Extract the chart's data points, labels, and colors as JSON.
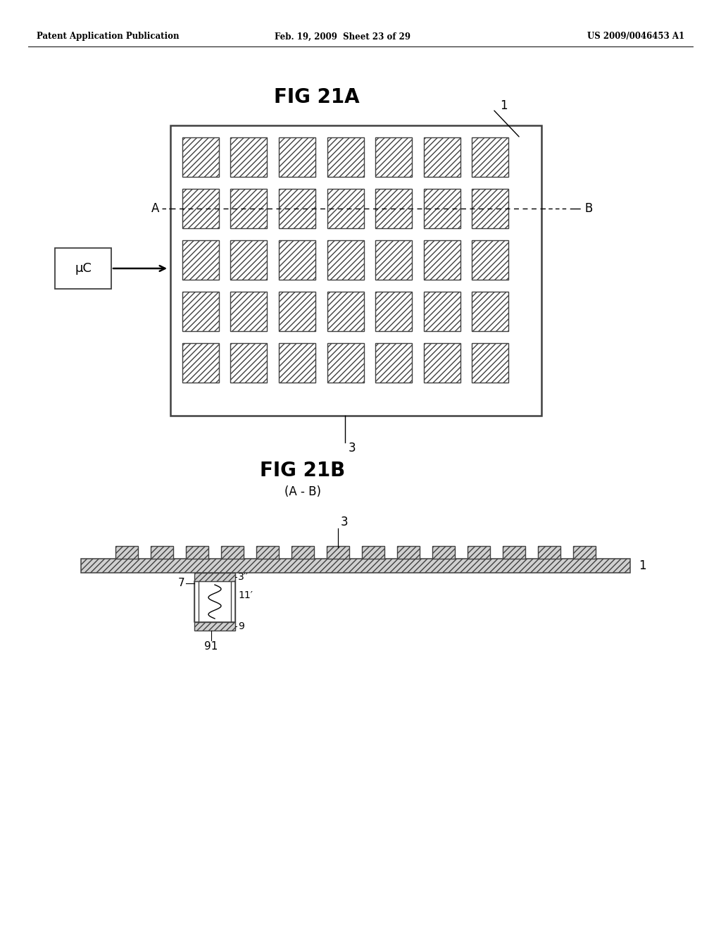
{
  "bg_color": "#ffffff",
  "header_left": "Patent Application Publication",
  "header_mid": "Feb. 19, 2009  Sheet 23 of 29",
  "header_right": "US 2009/0046453 A1",
  "fig21a_title": "FIG 21A",
  "fig21b_title": "FIG 21B",
  "fig21b_subtitle": "(A - B)",
  "grid_rows": 5,
  "grid_cols": 7,
  "uc_label": "μC"
}
